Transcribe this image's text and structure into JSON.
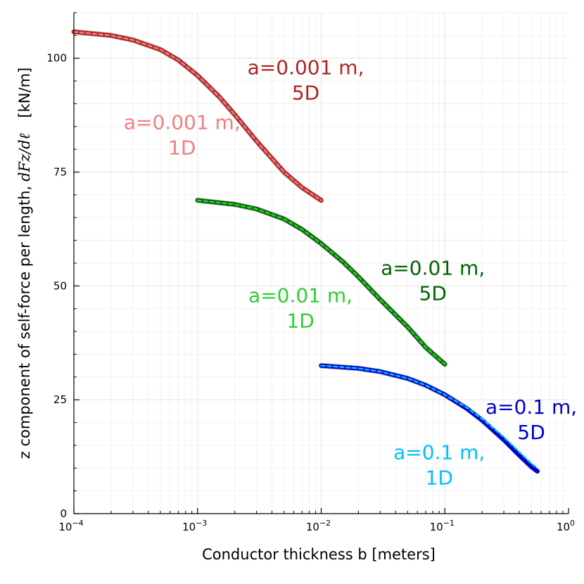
{
  "chart_data": {
    "type": "line",
    "xscale": "log",
    "xlabel": "Conductor thickness b [meters]",
    "ylabel_text": "z component of self-force per length,",
    "ylabel_math": "dFz/dℓ",
    "ylabel_units": "[kN/m]",
    "xlim": [
      0.0001,
      1
    ],
    "ylim": [
      0,
      110
    ],
    "x_ticks": [
      {
        "value": 0.0001,
        "base": "10",
        "exp": "−4"
      },
      {
        "value": 0.001,
        "base": "10",
        "exp": "−3"
      },
      {
        "value": 0.01,
        "base": "10",
        "exp": "−2"
      },
      {
        "value": 0.1,
        "base": "10",
        "exp": "−1"
      },
      {
        "value": 1,
        "base": "10",
        "exp": "0"
      }
    ],
    "y_ticks": [
      0,
      25,
      50,
      75,
      100
    ],
    "grid": true,
    "series": [
      {
        "name": "a=0.001 m, 5D",
        "color": "#b22222",
        "width": 6,
        "dash": false,
        "x": [
          0.0001,
          0.0002,
          0.0003,
          0.0005,
          0.0007,
          0.001,
          0.0015,
          0.002,
          0.003,
          0.005,
          0.007,
          0.01
        ],
        "y": [
          105.8,
          105.0,
          104.0,
          101.9,
          99.6,
          96.2,
          91.5,
          87.6,
          81.8,
          75.0,
          71.6,
          68.8
        ]
      },
      {
        "name": "a=0.001 m, 1D",
        "color": "#f08080",
        "width": 2.5,
        "dash": true,
        "x": [
          0.0001,
          0.0002,
          0.0003,
          0.0005,
          0.0007,
          0.001,
          0.0015,
          0.002,
          0.003,
          0.005,
          0.007,
          0.01
        ],
        "y": [
          105.8,
          105.0,
          104.0,
          101.9,
          99.6,
          96.2,
          91.5,
          87.6,
          81.8,
          75.0,
          71.6,
          68.8
        ]
      },
      {
        "name": "a=0.01 m, 5D",
        "color": "#006400",
        "width": 6,
        "dash": false,
        "x": [
          0.001,
          0.002,
          0.003,
          0.005,
          0.007,
          0.01,
          0.015,
          0.02,
          0.03,
          0.05,
          0.07,
          0.1
        ],
        "y": [
          68.8,
          67.9,
          66.9,
          64.7,
          62.4,
          59.3,
          55.3,
          52.0,
          47.0,
          41.0,
          36.5,
          32.8
        ]
      },
      {
        "name": "a=0.01 m, 1D",
        "color": "#32cd32",
        "width": 2.5,
        "dash": true,
        "x": [
          0.001,
          0.002,
          0.003,
          0.005,
          0.007,
          0.01,
          0.015,
          0.02,
          0.03,
          0.05,
          0.07,
          0.1
        ],
        "y": [
          68.8,
          67.9,
          66.9,
          64.7,
          62.4,
          59.3,
          55.3,
          52.0,
          47.0,
          41.0,
          36.5,
          32.8
        ]
      },
      {
        "name": "a=0.1 m, 5D",
        "color": "#0000cd",
        "width": 6,
        "dash": false,
        "x": [
          0.01,
          0.02,
          0.03,
          0.05,
          0.07,
          0.1,
          0.15,
          0.2,
          0.3,
          0.4,
          0.5,
          0.56
        ],
        "y": [
          32.5,
          31.9,
          31.2,
          29.7,
          28.2,
          26.1,
          23.1,
          20.5,
          16.2,
          12.8,
          10.3,
          9.3
        ]
      },
      {
        "name": "a=0.1 m, 1D",
        "color": "#00bfff",
        "width": 2.5,
        "dash": true,
        "x": [
          0.01,
          0.02,
          0.03,
          0.05,
          0.07,
          0.1,
          0.15,
          0.2,
          0.3,
          0.4,
          0.5,
          0.56
        ],
        "y": [
          32.5,
          31.9,
          31.2,
          29.7,
          28.2,
          26.1,
          23.3,
          20.8,
          16.8,
          13.5,
          11.0,
          10.0
        ]
      }
    ],
    "annotations": [
      {
        "line1": "a=0.001 m,",
        "line2": "5D",
        "color": "#b22222",
        "x": 0.0075,
        "y": 96
      },
      {
        "line1": "a=0.001 m,",
        "line2": "1D",
        "color": "#f08080",
        "x": 0.00075,
        "y": 84
      },
      {
        "line1": "a=0.01 m,",
        "line2": "5D",
        "color": "#006400",
        "x": 0.08,
        "y": 52
      },
      {
        "line1": "a=0.01 m,",
        "line2": "1D",
        "color": "#32cd32",
        "x": 0.0068,
        "y": 46
      },
      {
        "line1": "a=0.1 m,",
        "line2": "5D",
        "color": "#0000cd",
        "x": 0.5,
        "y": 21.5
      },
      {
        "line1": "a=0.1 m,",
        "line2": "1D",
        "color": "#00bfff",
        "x": 0.09,
        "y": 11.5
      }
    ]
  }
}
